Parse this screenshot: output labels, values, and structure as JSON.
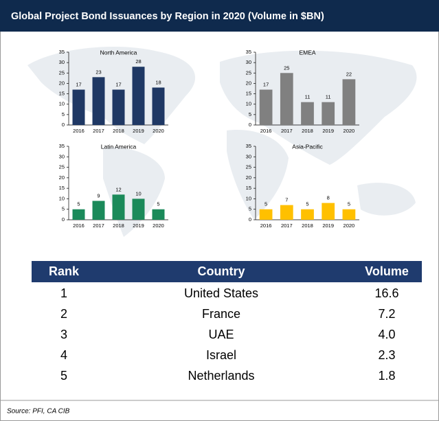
{
  "header": {
    "title": "Global Project Bond Issuances by Region in 2020 (Volume in $BN)"
  },
  "chart_data": [
    {
      "type": "bar",
      "title": "North America",
      "categories": [
        "2016",
        "2017",
        "2018",
        "2019",
        "2020"
      ],
      "values": [
        17,
        23,
        17,
        28,
        18
      ],
      "color": "#1f3864",
      "ylim": [
        0,
        35
      ],
      "yticks": [
        0,
        5,
        10,
        15,
        20,
        25,
        30,
        35
      ]
    },
    {
      "type": "bar",
      "title": "EMEA",
      "categories": [
        "2016",
        "2017",
        "2018",
        "2019",
        "2020"
      ],
      "values": [
        17,
        25,
        11,
        11,
        22
      ],
      "color": "#808080",
      "ylim": [
        0,
        35
      ],
      "yticks": [
        0,
        5,
        10,
        15,
        20,
        25,
        30,
        35
      ]
    },
    {
      "type": "bar",
      "title": "Latin America",
      "categories": [
        "2016",
        "2017",
        "2018",
        "2019",
        "2020"
      ],
      "values": [
        5,
        9,
        12,
        10,
        5
      ],
      "color": "#1b8a5a",
      "ylim": [
        0,
        35
      ],
      "yticks": [
        0,
        5,
        10,
        15,
        20,
        25,
        30,
        35
      ]
    },
    {
      "type": "bar",
      "title": "Asia-Pacific",
      "categories": [
        "2016",
        "2017",
        "2018",
        "2019",
        "2020"
      ],
      "values": [
        5,
        7,
        5,
        8,
        5
      ],
      "color": "#ffc000",
      "ylim": [
        0,
        35
      ],
      "yticks": [
        0,
        5,
        10,
        15,
        20,
        25,
        30,
        35
      ]
    }
  ],
  "table": {
    "columns": [
      "Rank",
      "Country",
      "Volume"
    ],
    "rows": [
      [
        "1",
        "United States",
        "16.6"
      ],
      [
        "2",
        "France",
        "7.2"
      ],
      [
        "3",
        "UAE",
        "4.0"
      ],
      [
        "4",
        "Israel",
        "2.3"
      ],
      [
        "5",
        "Netherlands",
        "1.8"
      ]
    ]
  },
  "source": "Source: PFI, CA CIB"
}
